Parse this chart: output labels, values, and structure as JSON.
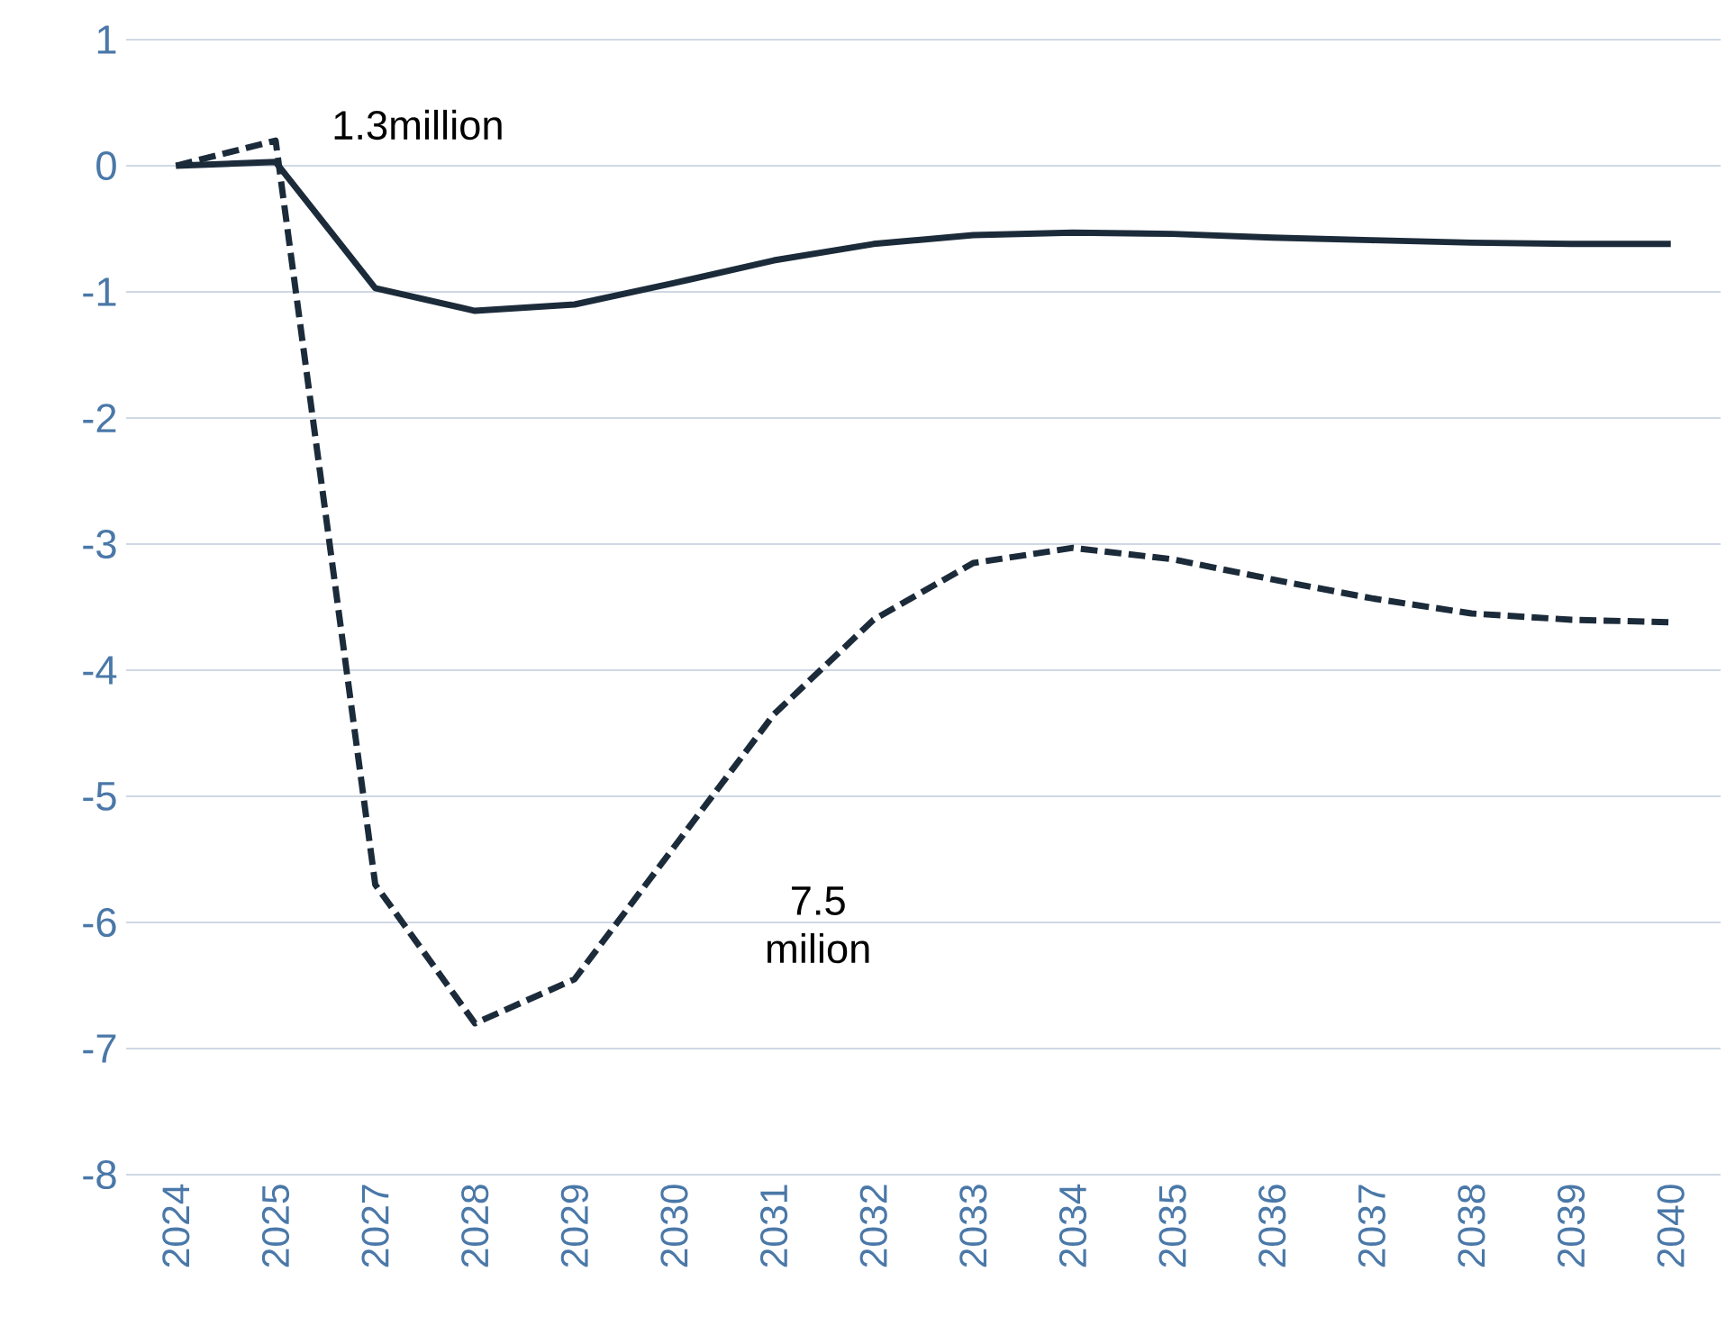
{
  "chart_data": {
    "type": "line",
    "categories": [
      "2024",
      "2025",
      "2027",
      "2028",
      "2029",
      "2030",
      "2031",
      "2032",
      "2033",
      "2034",
      "2035",
      "2036",
      "2037",
      "2038",
      "2039",
      "2040"
    ],
    "series": [
      {
        "color": "#1c2b3a",
        "line_style": "solid",
        "values": [
          0,
          0.03,
          -0.97,
          -1.15,
          -1.1,
          -0.93,
          -0.75,
          -0.62,
          -0.55,
          -0.53,
          -0.54,
          -0.57,
          -0.59,
          -0.61,
          -0.62,
          -0.62
        ]
      },
      {
        "color": "#1c2b3a",
        "line_style": "dashed",
        "values": [
          0,
          0.2,
          -5.7,
          -6.8,
          -6.45,
          -5.4,
          -4.35,
          -3.6,
          -3.15,
          -3.03,
          -3.12,
          -3.28,
          -3.43,
          -3.55,
          -3.6,
          -3.62
        ]
      }
    ],
    "ylim": [
      -8,
      1
    ],
    "yticks": [
      -8,
      -7,
      -6,
      -5,
      -4,
      -3,
      -2,
      -1,
      0,
      1
    ],
    "grid": "y",
    "marker": "none",
    "annotations": [
      "1.3million",
      "7.5 milion"
    ]
  }
}
